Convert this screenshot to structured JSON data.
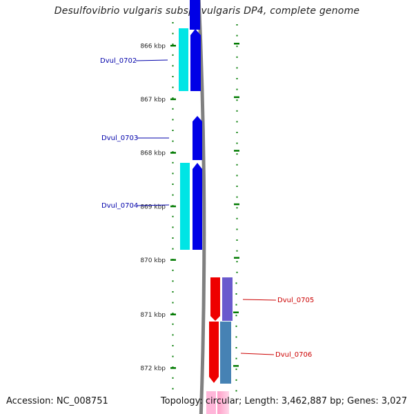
{
  "title": "Desulfovibrio vulgaris subsp. vulgaris DP4, complete genome",
  "footer": {
    "accession": "Accession: NC_008751",
    "summary": "Topology: circular; Length: 3,462,887 bp; Genes: 3,027"
  },
  "ticks": [
    {
      "label": "866 kbp",
      "kbp": 866
    },
    {
      "label": "867 kbp",
      "kbp": 867
    },
    {
      "label": "868 kbp",
      "kbp": 868
    },
    {
      "label": "869 kbp",
      "kbp": 869
    },
    {
      "label": "870 kbp",
      "kbp": 870
    },
    {
      "label": "871 kbp",
      "kbp": 871
    },
    {
      "label": "872 kbp",
      "kbp": 872
    }
  ],
  "genes": [
    {
      "label": "Dvul_0702",
      "strand": "forward"
    },
    {
      "label": "Dvul_0703",
      "strand": "forward"
    },
    {
      "label": "Dvul_0704",
      "strand": "forward"
    },
    {
      "label": "Dvul_0705",
      "strand": "reverse"
    },
    {
      "label": "Dvul_0706",
      "strand": "reverse"
    }
  ],
  "colors": {
    "forward_cds": "#0000e6",
    "forward_feature": "#00e5e5",
    "reverse_cds": "#ee0000",
    "reverse_feature_a": "#6a5acd",
    "reverse_feature_b": "#4682b4",
    "backbone": "#808080",
    "tick": "#007a00",
    "forward_label": "#0000aa",
    "reverse_label": "#cc0000"
  }
}
